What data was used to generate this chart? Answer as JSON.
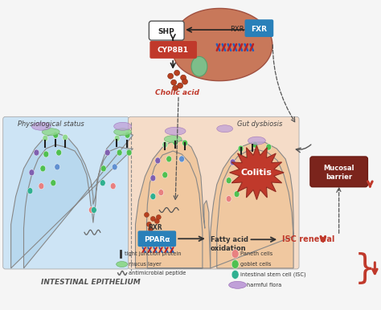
{
  "bg_color": "#f5f5f5",
  "light_blue_bg": "#cde4f5",
  "light_peach_bg": "#f5dcc8",
  "liver_color": "#c8785a",
  "liver_edge": "#a05040",
  "shp_box_color": "#ffffff",
  "shp_box_edge": "#555555",
  "cyp8b1_box_color": "#c0392b",
  "cyp8b1_text_color": "#ffffff",
  "fxr_box_color": "#2980b9",
  "fxr_text_color": "#ffffff",
  "rxr_text_color": "#333333",
  "cholic_acid_color": "#c0392b",
  "colitis_color": "#c0392b",
  "ppar_box_color": "#2980b9",
  "ppar_text_color": "#ffffff",
  "mucosal_box_color": "#7b241c",
  "mucosal_text_color": "#ffffff",
  "isc_renewal_color": "#c0392b",
  "red_arrow_color": "#c0392b",
  "intestinal_epithelium_text": "INTESTINAL EPITHELIUM",
  "physiological_status_text": "Physiological status",
  "gut_dysbiosis_text": "Gut dysbiosis",
  "cholic_acid_text": "Cholic acid",
  "colitis_text": "Colitis",
  "mucosal_barrier_text": "Mucosal\nbarrier",
  "fatty_acid_text": "Fatty acid\noxidation",
  "isc_renewal_text": "ISC renewal",
  "shp_text": "SHP",
  "cyp8b1_text": "CYP8B1",
  "fxr_text": "FXR",
  "rxr_text": "RXR",
  "ppara_text": "PPARα",
  "rxr2_text": "RXR",
  "crypt_color_left": "#b8d8ee",
  "crypt_color_right": "#f0c8a0",
  "cell_paneth": "#e88080",
  "cell_goblet": "#50c050",
  "cell_isc": "#30b090",
  "cell_purple": "#8060b0",
  "cell_blue": "#6090d0",
  "mucus_color": "#90d890",
  "flora_color": "#c0a0d8"
}
